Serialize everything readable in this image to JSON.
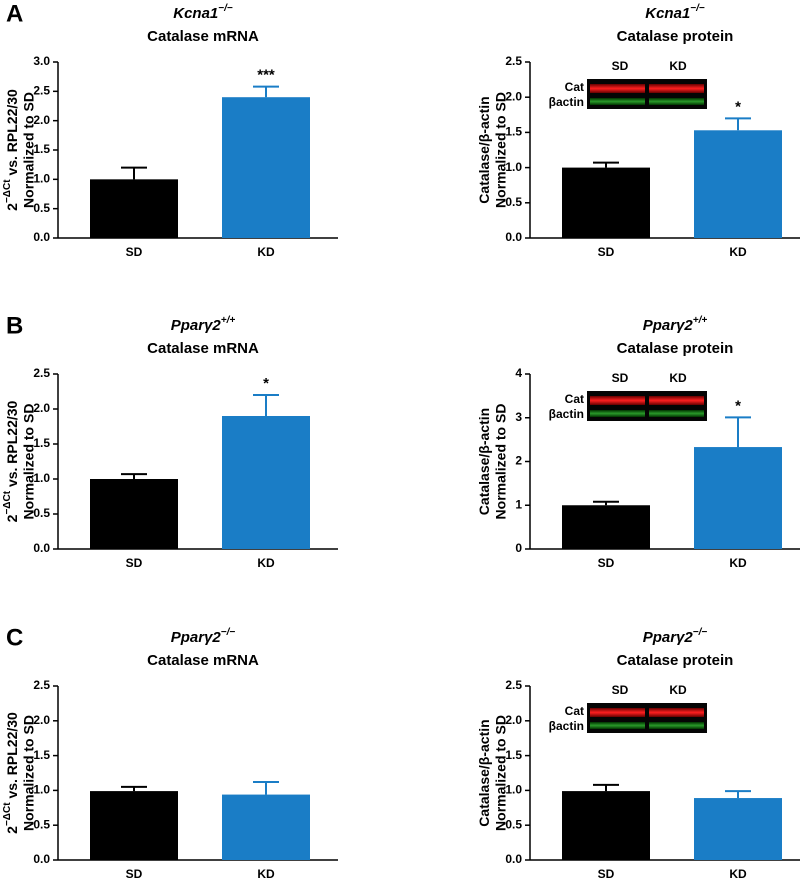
{
  "chart_data": [
    {
      "type": "bar",
      "panel": "A",
      "title_gene": "Kcna1",
      "title_genotype": "−/−",
      "subtitle": "Catalase mRNA",
      "ylabel_base": "2",
      "ylabel_sup": "−ΔCt",
      "ylabel_rest": " vs. RPL22/30",
      "ylabel_line2": "Normalized to SD",
      "categories": [
        "SD",
        "KD"
      ],
      "values": [
        1.0,
        2.4
      ],
      "errors": [
        0.2,
        0.18
      ],
      "colors": [
        "#000000",
        "#1a7dc6"
      ],
      "annotation": "***",
      "ylim": [
        0,
        3
      ],
      "yticks": [
        {
          "value": 0,
          "label": "0.0"
        },
        {
          "value": 0.5,
          "label": "0.5"
        },
        {
          "value": 1,
          "label": "1.0"
        },
        {
          "value": 1.5,
          "label": "1.5"
        },
        {
          "value": 2,
          "label": "2.0"
        },
        {
          "value": 2.5,
          "label": "2.5"
        },
        {
          "value": 3,
          "label": "3.0"
        }
      ]
    },
    {
      "type": "bar",
      "title_gene": "Kcna1",
      "title_genotype": "−/−",
      "subtitle": "Catalase protein",
      "ylabel_rest": "Catalase/β-actin",
      "ylabel_line2": "Normalized to SD",
      "categories": [
        "SD",
        "KD"
      ],
      "values": [
        1.0,
        1.53
      ],
      "errors": [
        0.07,
        0.17
      ],
      "colors": [
        "#000000",
        "#1a7dc6"
      ],
      "annotation": "*",
      "inset": {
        "lanes": [
          "SD",
          "KD"
        ],
        "rows": [
          "Cat",
          "βactin"
        ]
      },
      "ylim": [
        0,
        2.5
      ],
      "yticks": [
        {
          "value": 0,
          "label": "0.0"
        },
        {
          "value": 0.5,
          "label": "0.5"
        },
        {
          "value": 1,
          "label": "1.0"
        },
        {
          "value": 1.5,
          "label": "1.5"
        },
        {
          "value": 2,
          "label": "2.0"
        },
        {
          "value": 2.5,
          "label": "2.5"
        }
      ]
    },
    {
      "type": "bar",
      "panel": "B",
      "title_gene": "Pparγ2",
      "title_genotype": "+/+",
      "subtitle": "Catalase mRNA",
      "ylabel_base": "2",
      "ylabel_sup": "−ΔCt",
      "ylabel_rest": " vs. RPL22/30",
      "ylabel_line2": "Normalized to SD",
      "categories": [
        "SD",
        "KD"
      ],
      "values": [
        1.0,
        1.9
      ],
      "errors": [
        0.07,
        0.3
      ],
      "colors": [
        "#000000",
        "#1a7dc6"
      ],
      "annotation": "*",
      "ylim": [
        0,
        2.5
      ],
      "yticks": [
        {
          "value": 0,
          "label": "0.0"
        },
        {
          "value": 0.5,
          "label": "0.5"
        },
        {
          "value": 1,
          "label": "1.0"
        },
        {
          "value": 1.5,
          "label": "1.5"
        },
        {
          "value": 2,
          "label": "2.0"
        },
        {
          "value": 2.5,
          "label": "2.5"
        }
      ]
    },
    {
      "type": "bar",
      "title_gene": "Pparγ2",
      "title_genotype": "+/+",
      "subtitle": "Catalase protein",
      "ylabel_rest": "Catalase/β-actin",
      "ylabel_line2": "Normalized to SD",
      "categories": [
        "SD",
        "KD"
      ],
      "values": [
        1.0,
        2.33
      ],
      "errors": [
        0.08,
        0.68
      ],
      "colors": [
        "#000000",
        "#1a7dc6"
      ],
      "annotation": "*",
      "inset": {
        "lanes": [
          "SD",
          "KD"
        ],
        "rows": [
          "Cat",
          "βactin"
        ]
      },
      "ylim": [
        0,
        4
      ],
      "yticks": [
        0,
        1,
        2,
        3,
        4
      ]
    },
    {
      "type": "bar",
      "panel": "C",
      "title_gene": "Pparγ2",
      "title_genotype": "−/−",
      "subtitle": "Catalase mRNA",
      "ylabel_base": "2",
      "ylabel_sup": "−ΔCt",
      "ylabel_rest": " vs. RPL22/30",
      "ylabel_line2": "Normalized to SD",
      "categories": [
        "SD",
        "KD"
      ],
      "values": [
        0.99,
        0.94
      ],
      "errors": [
        0.06,
        0.18
      ],
      "colors": [
        "#000000",
        "#1a7dc6"
      ],
      "ylim": [
        0,
        2.5
      ],
      "yticks": [
        {
          "value": 0,
          "label": "0.0"
        },
        {
          "value": 0.5,
          "label": "0.5"
        },
        {
          "value": 1,
          "label": "1.0"
        },
        {
          "value": 1.5,
          "label": "1.5"
        },
        {
          "value": 2,
          "label": "2.0"
        },
        {
          "value": 2.5,
          "label": "2.5"
        }
      ]
    },
    {
      "type": "bar",
      "title_gene": "Pparγ2",
      "title_genotype": "−/−",
      "subtitle": "Catalase protein",
      "ylabel_rest": "Catalase/β-actin",
      "ylabel_line2": "Normalized to SD",
      "categories": [
        "SD",
        "KD"
      ],
      "values": [
        0.99,
        0.89
      ],
      "errors": [
        0.09,
        0.1
      ],
      "colors": [
        "#000000",
        "#1a7dc6"
      ],
      "inset": {
        "lanes": [
          "SD",
          "KD"
        ],
        "rows": [
          "Cat",
          "βactin"
        ]
      },
      "ylim": [
        0,
        2.5
      ],
      "yticks": [
        {
          "value": 0,
          "label": "0.0"
        },
        {
          "value": 0.5,
          "label": "0.5"
        },
        {
          "value": 1,
          "label": "1.0"
        },
        {
          "value": 1.5,
          "label": "1.5"
        },
        {
          "value": 2,
          "label": "2.0"
        },
        {
          "value": 2.5,
          "label": "2.5"
        }
      ]
    }
  ]
}
